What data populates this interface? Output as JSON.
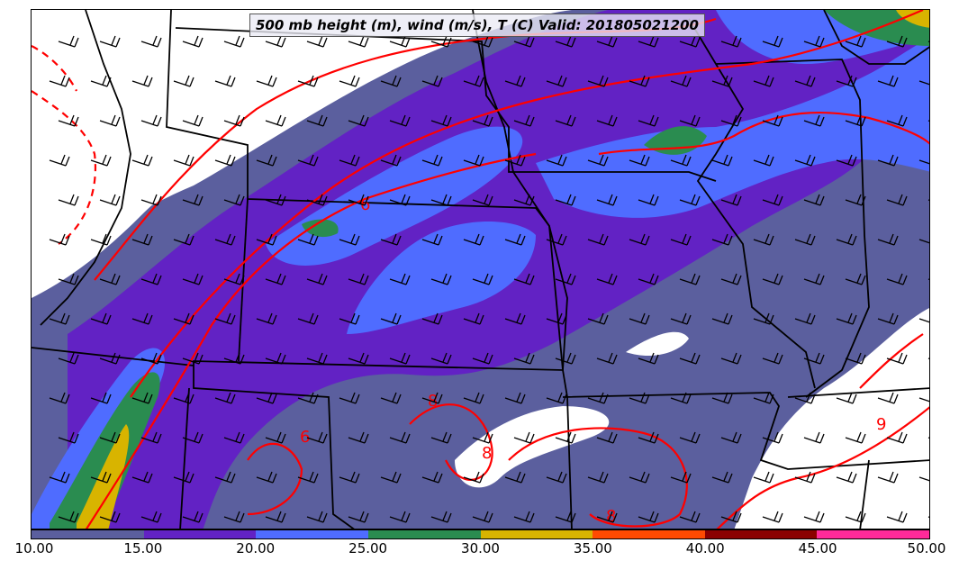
{
  "title": "500 mb height (m), wind (m/s), T (C) Valid: 201805021200",
  "colorbar": {
    "ticks": [
      "10.00",
      "15.00",
      "20.00",
      "25.00",
      "30.00",
      "35.00",
      "40.00",
      "45.00",
      "50.00"
    ],
    "colors": [
      "#5b5f9e",
      "#6222c4",
      "#4f6cff",
      "#2a8c50",
      "#d8b400",
      "#ff4a00",
      "#8b0000",
      "#ff2a9a"
    ]
  },
  "contour_labels": [
    "6",
    "8",
    "6",
    "8",
    "8",
    "9"
  ],
  "colors": {
    "isotherm": "#ff0000",
    "border": "#000000"
  }
}
